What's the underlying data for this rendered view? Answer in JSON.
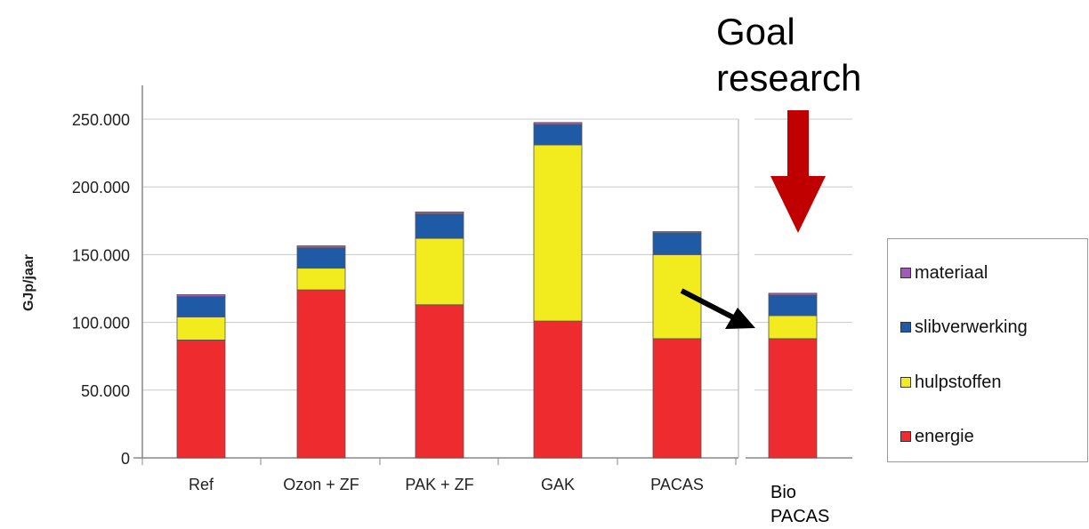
{
  "annotation": {
    "goal_line1": "Goal",
    "goal_line2": "research",
    "extra_label_line1": "Bio",
    "extra_label_line2": "PACAS"
  },
  "colors": {
    "energie": "#ee2b2e",
    "hulpstoffen": "#f2ec1f",
    "slibverwerking": "#1f5aa6",
    "materiaal": "#a05ab8",
    "goal_arrow": "#c00000",
    "pointer_arrow": "#000000"
  },
  "chart_data": {
    "type": "bar",
    "stacked": true,
    "ylabel": "GJp/jaar",
    "ylim": [
      0,
      250000
    ],
    "yticks": [
      "0",
      "50.000",
      "100.000",
      "150.000",
      "200.000",
      "250.000"
    ],
    "categories": [
      "Ref",
      "Ozon + ZF",
      "PAK + ZF",
      "GAK",
      "PACAS",
      "Bio PACAS"
    ],
    "series": [
      {
        "name": "energie",
        "values": [
          87000,
          124000,
          113000,
          101000,
          88000,
          88000
        ]
      },
      {
        "name": "hulpstoffen",
        "values": [
          17000,
          16000,
          49000,
          130000,
          62000,
          17000
        ]
      },
      {
        "name": "slibverwerking",
        "values": [
          15000,
          15000,
          18000,
          15000,
          16000,
          15000
        ]
      },
      {
        "name": "materiaal",
        "values": [
          1500,
          1500,
          1500,
          1500,
          1000,
          1500
        ]
      }
    ],
    "legend": [
      "materiaal",
      "slibverwerking",
      "hulpstoffen",
      "energie"
    ],
    "legend_position": "right",
    "grid": true
  }
}
